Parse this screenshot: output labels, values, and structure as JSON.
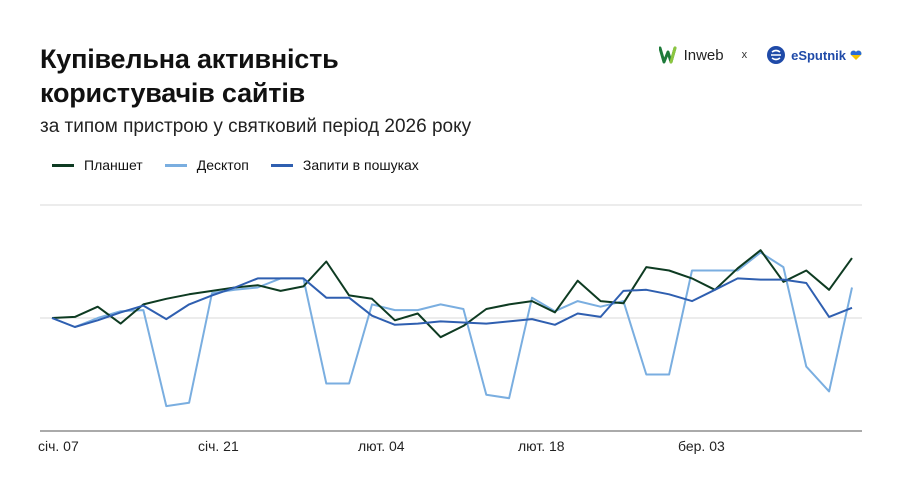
{
  "header": {
    "title_line1": "Купівельна активність",
    "title_line2": "користувачів сайтів",
    "subtitle": "за типом пристрою у святковий період 2026 року"
  },
  "logos": {
    "inweb": "Inweb",
    "separator": "x",
    "esputnik": "eSputnik"
  },
  "colors": {
    "tablet": "#0e3b22",
    "desktop": "#7aaee0",
    "search": "#2f5fb0",
    "grid": "#d9d9d9"
  },
  "chart_data": {
    "type": "line",
    "title": "Купівельна активність користувачів сайтів",
    "subtitle": "за типом пристрою у святковий період 2026 року",
    "legend_position": "top-left",
    "grid": true,
    "x_tick_labels": [
      "січ. 07",
      "січ. 21",
      "лют. 04",
      "лют. 18",
      "бер. 03"
    ],
    "x_tick_index": [
      0,
      7,
      14,
      21,
      28
    ],
    "ylim": [
      -100,
      100
    ],
    "series": [
      {
        "name": "Планшет",
        "values": [
          0,
          1,
          10,
          -5,
          12,
          17,
          21,
          24,
          27,
          29,
          24,
          28,
          50,
          20,
          17,
          -2,
          4,
          -17,
          -7,
          8,
          12,
          15,
          5,
          33,
          15,
          13,
          45,
          42,
          35,
          25,
          44,
          60,
          32,
          42,
          25,
          53
        ]
      },
      {
        "name": "Десктоп",
        "values": [
          0,
          -8,
          0,
          6,
          7,
          -78,
          -75,
          22,
          25,
          27,
          35,
          35,
          -58,
          -58,
          12,
          7,
          7,
          12,
          8,
          -68,
          -71,
          18,
          6,
          15,
          10,
          15,
          -50,
          -50,
          42,
          42,
          42,
          58,
          45,
          -43,
          -65,
          27
        ]
      },
      {
        "name": "Запити в пошуках",
        "values": [
          0,
          -8,
          -2,
          5,
          11,
          -1,
          12,
          20,
          27,
          35,
          35,
          35,
          18,
          18,
          2,
          -6,
          -5,
          -3,
          -4,
          -5,
          -3,
          -1,
          -6,
          4,
          1,
          24,
          25,
          21,
          15,
          25,
          35,
          34,
          34,
          31,
          1,
          9
        ]
      }
    ]
  }
}
